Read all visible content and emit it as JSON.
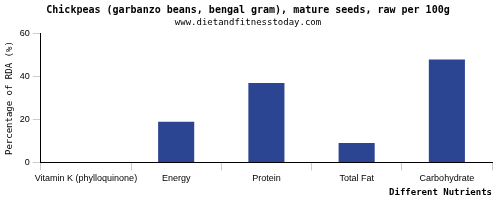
{
  "chart_data": {
    "type": "bar",
    "title": "Chickpeas (garbanzo beans, bengal gram), mature seeds, raw per 100g",
    "subtitle": "www.dietandfitnesstoday.com",
    "x_label": "Different Nutrients",
    "y_label": "Percentage of RDA (%)",
    "categories": [
      "Vitamin K (phylloquinone)",
      "Energy",
      "Protein",
      "Total Fat",
      "Carbohydrate"
    ],
    "values": [
      0,
      19,
      37,
      9,
      48
    ],
    "color": "#2b4592",
    "ylim": [
      0,
      60
    ],
    "yticks": [
      0,
      20,
      40,
      60
    ],
    "grid": false
  }
}
